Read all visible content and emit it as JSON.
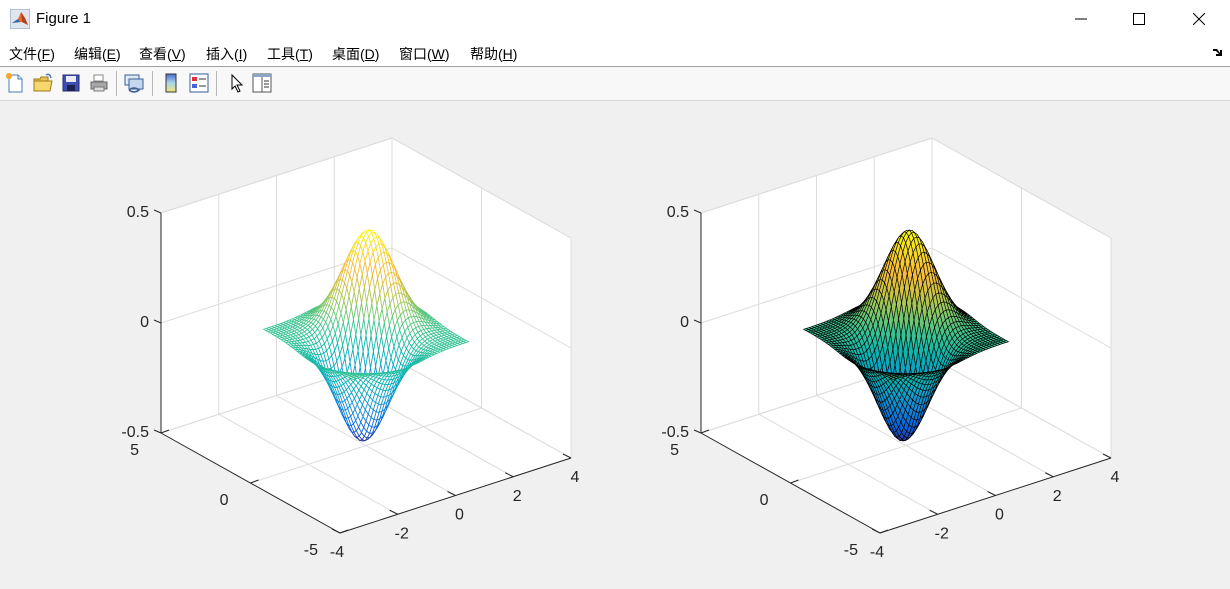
{
  "window": {
    "title": "Figure 1",
    "controls": {
      "minimize": "minimize",
      "maximize": "maximize",
      "close": "close"
    }
  },
  "menu": {
    "items": [
      {
        "label": "文件(",
        "key": "F",
        "end": ")"
      },
      {
        "label": "编辑(",
        "key": "E",
        "end": ")"
      },
      {
        "label": "查看(",
        "key": "V",
        "end": ")"
      },
      {
        "label": "插入(",
        "key": "I",
        "end": ")"
      },
      {
        "label": "工具(",
        "key": "T",
        "end": ")"
      },
      {
        "label": "桌面(",
        "key": "D",
        "end": ")"
      },
      {
        "label": "窗口(",
        "key": "W",
        "end": ")"
      },
      {
        "label": "帮助(",
        "key": "H",
        "end": ")"
      }
    ],
    "dock_icon": "dock-arrow-icon"
  },
  "toolbar": {
    "buttons": [
      "new-figure-icon",
      "open-file-icon",
      "save-icon",
      "print-icon",
      "link-plot-icon",
      "colorbar-icon",
      "legend-icon",
      "edit-pointer-icon",
      "property-inspector-icon"
    ]
  },
  "chart_data": [
    {
      "type": "mesh",
      "title": "",
      "function": "z = x .* exp(-x.^2 - y.^2)",
      "domain": {
        "x": [
          -2,
          2
        ],
        "y": [
          -2,
          2
        ],
        "step": 0.1
      },
      "xlabel": "",
      "ylabel": "",
      "zlabel": "",
      "x_ticks": [
        "-4",
        "-2",
        "0",
        "2",
        "4"
      ],
      "y_ticks": [
        "-5",
        "0",
        "5"
      ],
      "z_ticks": [
        "-0.5",
        "0",
        "0.5"
      ],
      "xlim": [
        -4,
        4
      ],
      "ylim": [
        -5,
        5
      ],
      "zlim": [
        -0.5,
        0.5
      ],
      "z_min": -0.43,
      "z_max": 0.43,
      "colormap": "parula",
      "grid": true,
      "edge_color": "colormap",
      "face_color": "none"
    },
    {
      "type": "surface",
      "title": "",
      "function": "z = x .* exp(-x.^2 - y.^2)",
      "domain": {
        "x": [
          -2,
          2
        ],
        "y": [
          -2,
          2
        ],
        "step": 0.1
      },
      "xlabel": "",
      "ylabel": "",
      "zlabel": "",
      "x_ticks": [
        "-4",
        "-2",
        "0",
        "2",
        "4"
      ],
      "y_ticks": [
        "-5",
        "0",
        "5"
      ],
      "z_ticks": [
        "-0.5",
        "0",
        "0.5"
      ],
      "xlim": [
        -4,
        4
      ],
      "ylim": [
        -5,
        5
      ],
      "zlim": [
        -0.5,
        0.5
      ],
      "z_min": -0.43,
      "z_max": 0.43,
      "colormap": "parula",
      "grid": true,
      "edge_color": "#000000",
      "face_color": "colormap"
    }
  ]
}
